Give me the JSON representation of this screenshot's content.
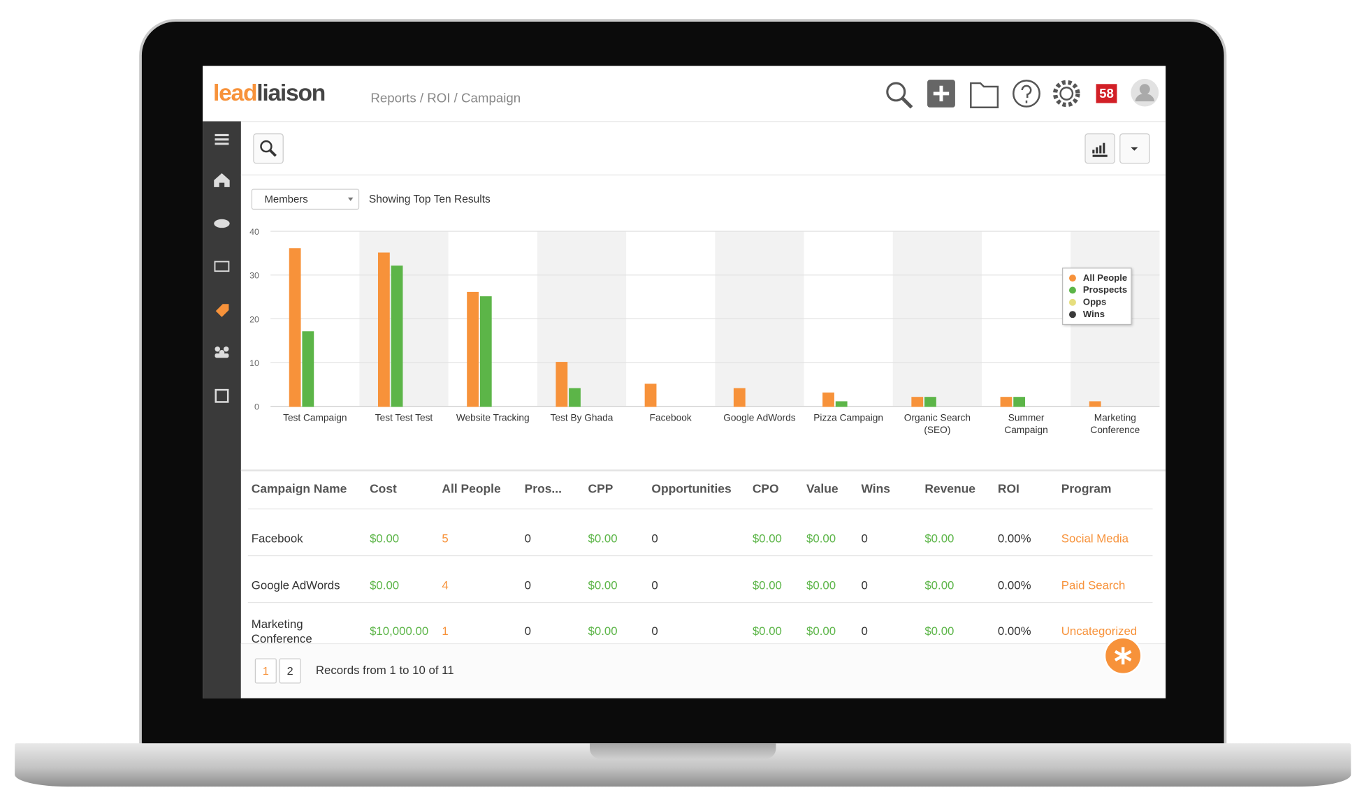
{
  "header": {
    "logo_lead": "lead",
    "logo_liaison": "liaison",
    "breadcrumb": "Reports / ROI / Campaign",
    "notifications": "58"
  },
  "filter": {
    "dropdown": "Members",
    "note": "Showing Top Ten Results"
  },
  "chart_data": {
    "type": "bar",
    "categories": [
      "Test Campaign",
      "Test Test Test",
      "Website Tracking",
      "Test By Ghada",
      "Facebook",
      "Google AdWords",
      "Pizza Campaign",
      "Organic Search\n(SEO)",
      "Summer\nCampaign",
      "Marketing\nConference"
    ],
    "series": [
      {
        "name": "All People",
        "color": "#f7923a",
        "values": [
          36,
          35,
          26,
          10,
          5,
          4,
          3,
          2,
          2,
          1
        ]
      },
      {
        "name": "Prospects",
        "color": "#5cb548",
        "values": [
          17,
          32,
          25,
          4,
          0,
          0,
          1,
          2,
          2,
          0
        ]
      },
      {
        "name": "Opps",
        "color": "#e6de7e",
        "values": [
          0,
          0,
          0,
          0,
          0,
          0,
          0,
          0,
          0,
          0
        ]
      },
      {
        "name": "Wins",
        "color": "#3a3a3a",
        "values": [
          0,
          0,
          0,
          0,
          0,
          0,
          0,
          0,
          0,
          0
        ]
      }
    ],
    "ylim": [
      0,
      40
    ],
    "yticks": [
      0,
      10,
      20,
      30,
      40
    ],
    "grid": true,
    "legend": "upper right"
  },
  "table": {
    "columns": [
      "Campaign Name",
      "Cost",
      "All People",
      "Pros...",
      "CPP",
      "Opportunities",
      "CPO",
      "Value",
      "Wins",
      "Revenue",
      "ROI",
      "Program"
    ],
    "rows": [
      [
        "Facebook",
        "$0.00",
        "5",
        "0",
        "$0.00",
        "0",
        "$0.00",
        "$0.00",
        "0",
        "$0.00",
        "0.00%",
        "Social Media"
      ],
      [
        "Google AdWords",
        "$0.00",
        "4",
        "0",
        "$0.00",
        "0",
        "$0.00",
        "$0.00",
        "0",
        "$0.00",
        "0.00%",
        "Paid Search"
      ],
      [
        "Marketing Conference",
        "$10,000.00",
        "1",
        "0",
        "$0.00",
        "0",
        "$0.00",
        "$0.00",
        "0",
        "$0.00",
        "0.00%",
        "Uncategorized"
      ]
    ]
  },
  "pagination": {
    "pages": [
      "1",
      "2"
    ],
    "summary": "Records from 1 to 10 of 11"
  }
}
